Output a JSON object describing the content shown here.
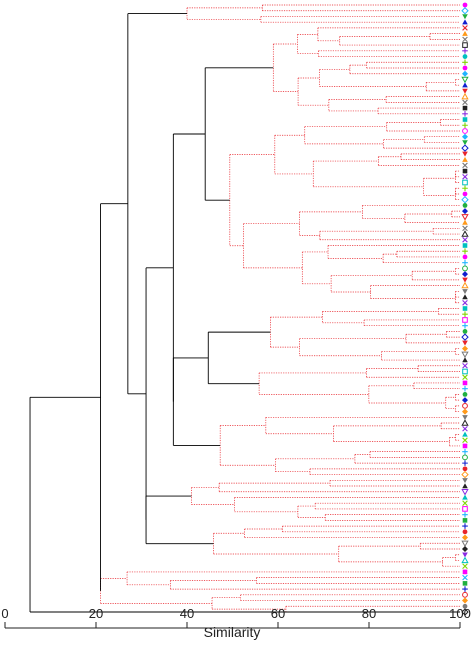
{
  "chart_data": {
    "type": "dendrogram",
    "xlabel": "Similarity",
    "xlim": [
      0,
      100
    ],
    "xticks": [
      0,
      20,
      40,
      60,
      80,
      100
    ],
    "leaf_count": 107,
    "group_colors": {
      "significant": "#000000",
      "not_significant": "#e8242b"
    },
    "symbol_colors": [
      "#ff00ff",
      "#1fb4ff",
      "#20b040",
      "#1020d0",
      "#e8242b",
      "#ff9a1a",
      "#7a7a7a",
      "#222222",
      "#8a2be2",
      "#00c0c0",
      "#7fd600"
    ],
    "major_clusters": [
      {
        "join_similarity": 5.5,
        "note": "root join"
      },
      {
        "join_similarity": 27,
        "note": "main cluster join"
      },
      {
        "join_similarity": 21,
        "note": "bottom group join"
      },
      {
        "join_similarity": 31,
        "note": "bottom sub-group"
      },
      {
        "join_similarity": 37,
        "note": "central group"
      },
      {
        "join_similarity": 44,
        "note": "upper middle cluster"
      }
    ]
  }
}
